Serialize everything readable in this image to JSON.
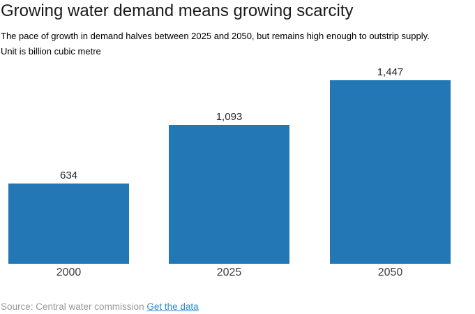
{
  "header": {
    "title": "Growing water demand means growing scarcity",
    "subtitle_lines": [
      "The pace of growth in demand halves between 2025 and 2050, but remains high enough to outstrip supply.",
      "Unit is billion cubic metre"
    ]
  },
  "chart_data": {
    "type": "bar",
    "title": "Growing water demand means growing scarcity",
    "subtitle": "The pace of growth in demand halves between 2025 and 2050, but remains high enough to outstrip supply. Unit is billion cubic metre",
    "unit": "billion cubic metre",
    "categories": [
      "2000",
      "2025",
      "2050"
    ],
    "values": [
      634,
      1093,
      1447
    ],
    "value_labels": [
      "634",
      "1,093",
      "1,447"
    ],
    "xlabel": "",
    "ylabel": "",
    "ylim": [
      0,
      1447
    ],
    "grid": false,
    "legend": "none",
    "bar_color": "#2377b4"
  },
  "footer": {
    "source_prefix": "Source: Central water commission",
    "link_label": "Get the data"
  },
  "colors": {
    "bar": "#2377b4",
    "link": "#2b8cd0",
    "source_text": "#999999"
  }
}
